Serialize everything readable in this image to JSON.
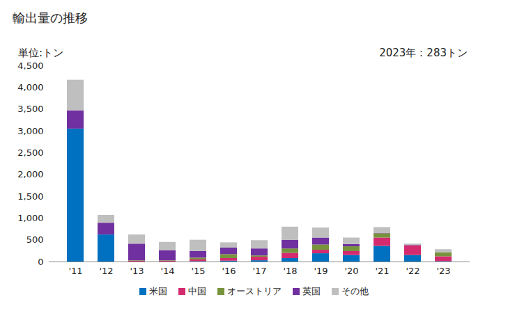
{
  "chart_data": {
    "type": "bar",
    "stacked": true,
    "title": "輸出量の推移",
    "y_label": "単位:トン",
    "annotation": "2023年：283トン",
    "categories": [
      "'11",
      "'12",
      "'13",
      "'14",
      "'15",
      "'16",
      "'17",
      "'18",
      "'19",
      "'20",
      "'21",
      "'22",
      "'23"
    ],
    "series": [
      {
        "name": "米国",
        "color": "#0070c0",
        "values": [
          3050,
          620,
          0,
          0,
          10,
          20,
          30,
          80,
          190,
          150,
          360,
          150,
          10
        ]
      },
      {
        "name": "中国",
        "color": "#d42a6e",
        "values": [
          0,
          0,
          20,
          20,
          40,
          60,
          80,
          120,
          80,
          90,
          190,
          220,
          110
        ]
      },
      {
        "name": "オーストリア",
        "color": "#77933c",
        "values": [
          0,
          0,
          10,
          10,
          40,
          90,
          30,
          100,
          120,
          110,
          100,
          0,
          90
        ]
      },
      {
        "name": "英国",
        "color": "#7030a0",
        "values": [
          420,
          270,
          380,
          230,
          150,
          150,
          160,
          200,
          160,
          50,
          10,
          10,
          0
        ]
      },
      {
        "name": "その他",
        "color": "#bfbfbf",
        "values": [
          700,
          180,
          210,
          190,
          260,
          120,
          190,
          300,
          230,
          150,
          130,
          30,
          73
        ]
      }
    ],
    "ylim": [
      0,
      4500
    ],
    "yticks": [
      0,
      500,
      {
        "value": 1000,
        "label": "1,000"
      },
      {
        "value": 1500,
        "label": "1,500"
      },
      {
        "value": 2000,
        "label": "2,000"
      },
      {
        "value": 2500,
        "label": "2,500"
      },
      {
        "value": 3000,
        "label": "3,000"
      },
      {
        "value": 3500,
        "label": "3,500"
      },
      {
        "value": 4000,
        "label": "4,000"
      },
      {
        "value": 4500,
        "label": "4,500"
      }
    ],
    "grid": false,
    "legend": "bottom"
  }
}
